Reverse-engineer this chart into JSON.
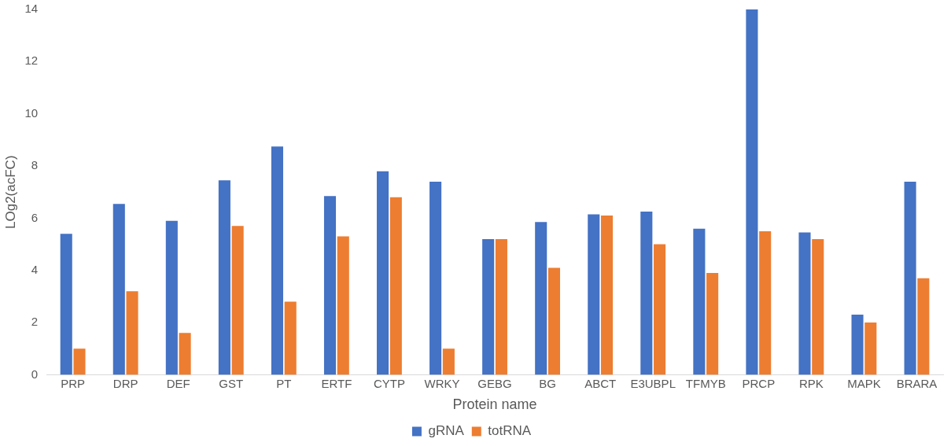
{
  "chart_data": {
    "type": "bar",
    "xlabel": "Protein name",
    "ylabel": "LOg2(acFC)",
    "categories": [
      "PRP",
      "DRP",
      "DEF",
      "GST",
      "PT",
      "ERTF",
      "CYTP",
      "WRKY",
      "GEBG",
      "BG",
      "ABCT",
      "E3UBPL",
      "TFMYB",
      "PRCP",
      "RPK",
      "MAPK",
      "BRARA"
    ],
    "series": [
      {
        "name": "gRNA",
        "color": "#4472c4",
        "values": [
          5.4,
          6.55,
          5.9,
          7.45,
          8.75,
          6.85,
          7.8,
          7.4,
          5.2,
          5.85,
          6.15,
          6.25,
          5.6,
          14,
          5.45,
          2.3,
          7.4
        ]
      },
      {
        "name": "totRNA",
        "color": "#ed7d31",
        "values": [
          1.0,
          3.2,
          1.6,
          5.7,
          2.8,
          5.3,
          6.8,
          1.0,
          5.2,
          4.1,
          6.1,
          5.0,
          3.9,
          5.5,
          5.2,
          2.0,
          3.7
        ]
      }
    ],
    "ylim": [
      0,
      14
    ],
    "yticks": [
      0,
      2,
      4,
      6,
      8,
      10,
      12,
      14
    ],
    "grid": false,
    "legend": "bottom"
  }
}
